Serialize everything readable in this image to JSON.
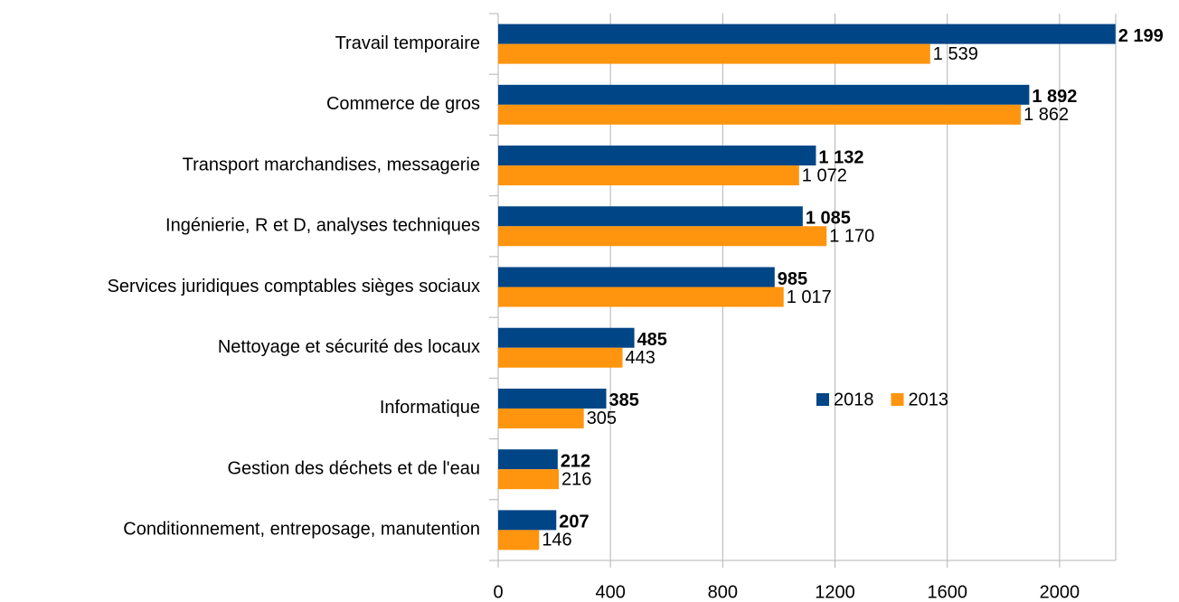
{
  "chart_data": {
    "type": "hbar",
    "categories": [
      "Travail temporaire",
      "Commerce de gros",
      "Transport marchandises, messagerie",
      "Ingénierie, R et D, analyses techniques",
      "Services juridiques comptables sièges sociaux",
      "Nettoyage et sécurité des locaux",
      "Informatique",
      "Gestion des déchets et de l'eau",
      "Conditionnement, entreposage, manutention"
    ],
    "series": [
      {
        "name": "2018",
        "color": "#004586",
        "values": [
          2199,
          1892,
          1132,
          1085,
          985,
          485,
          385,
          212,
          207
        ],
        "value_labels": [
          "2 199",
          "1 892",
          "1 132",
          "1 085",
          "985",
          "485",
          "385",
          "212",
          "207"
        ]
      },
      {
        "name": "2013",
        "color": "#ff950e",
        "values": [
          1539,
          1862,
          1072,
          1170,
          1017,
          443,
          305,
          216,
          146
        ],
        "value_labels": [
          "1 539",
          "1 862",
          "1 072",
          "1 170",
          "1 017",
          "443",
          "305",
          "216",
          "146"
        ]
      }
    ],
    "xlim": [
      0,
      2200
    ],
    "xticks": [
      0,
      400,
      800,
      1200,
      1600,
      2000
    ],
    "grid": true,
    "legend": "center"
  }
}
